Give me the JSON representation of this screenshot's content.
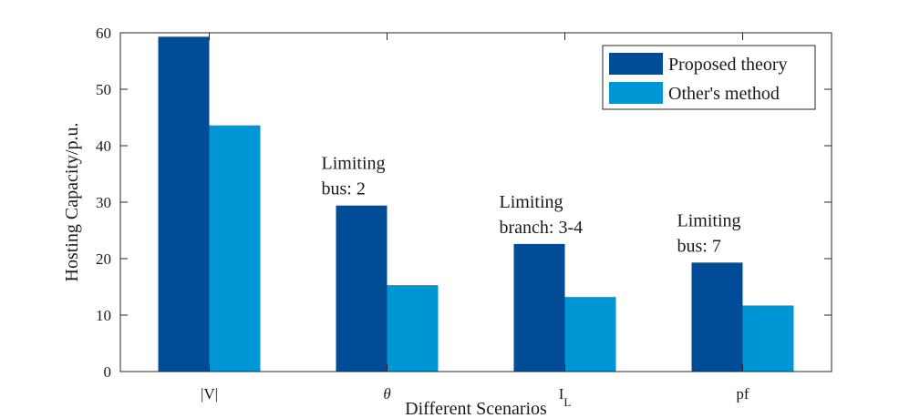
{
  "chart_data": {
    "type": "bar",
    "categories": [
      "|V|",
      "θ",
      "I_L",
      "pf"
    ],
    "series": [
      {
        "name": "Proposed theory",
        "color": "#004C97",
        "values": [
          59.3,
          29.4,
          22.6,
          19.3
        ]
      },
      {
        "name": "Other's method",
        "color": "#0096D6",
        "values": [
          43.6,
          15.3,
          13.2,
          11.7
        ]
      }
    ],
    "xlabel": "Different Scenarios",
    "ylabel": "Hosting Capacity/p.u.",
    "ylim": [
      0,
      60
    ],
    "yticks": [
      0,
      10,
      20,
      30,
      40,
      50,
      60
    ],
    "grid": false,
    "legend_position": "top-right",
    "annotations": [
      {
        "category": "θ",
        "lines": [
          "Limiting",
          "bus: 2"
        ]
      },
      {
        "category": "I_L",
        "lines": [
          "Limiting",
          "branch: 3-4"
        ]
      },
      {
        "category": "pf",
        "lines": [
          "Limiting",
          "bus: 7"
        ]
      }
    ]
  }
}
